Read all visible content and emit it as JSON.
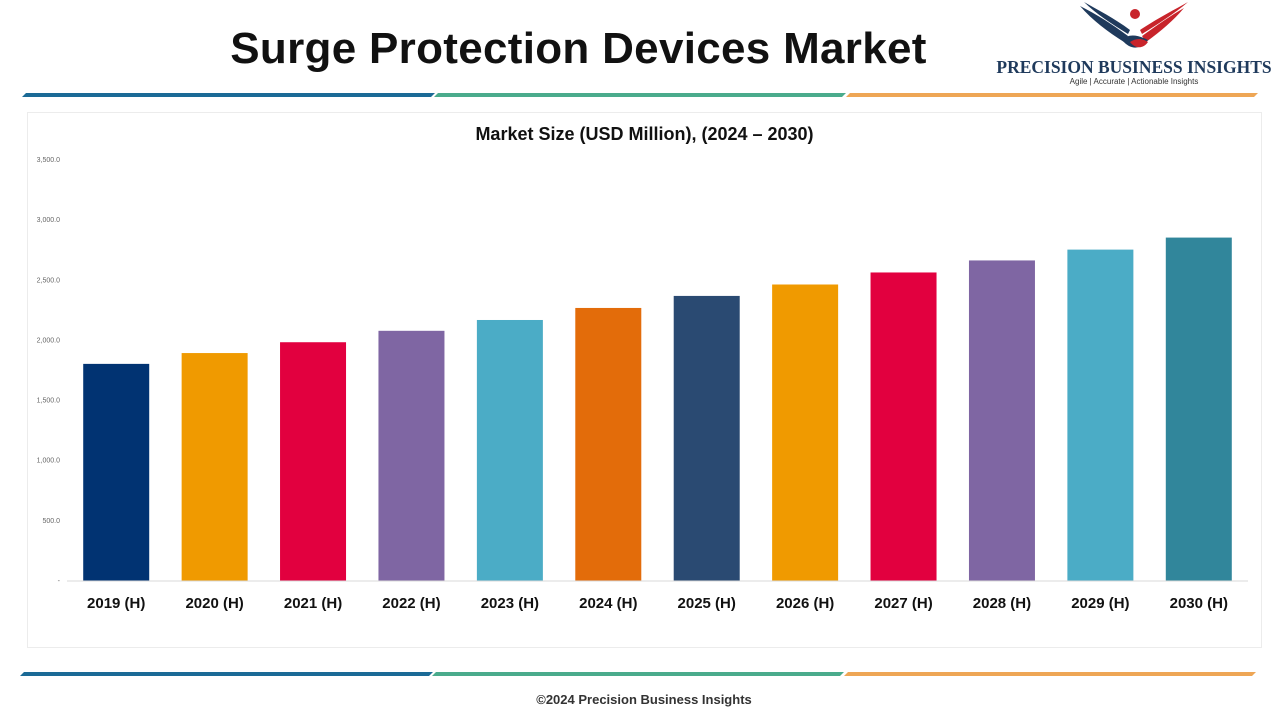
{
  "page": {
    "title": "Surge Protection Devices Market",
    "footer": "©2024 Precision Business Insights"
  },
  "logo": {
    "name": "PRECISION BUSINESS INSIGHTS",
    "tagline": "Agile | Accurate | Actionable Insights"
  },
  "colors": {
    "stripe_blue": "#1b6a96",
    "stripe_green": "#4aab8c",
    "stripe_orange": "#eea655"
  },
  "chart_data": {
    "type": "bar",
    "title": "Market Size (USD Million), (2024 – 2030)",
    "xlabel": "",
    "ylabel": "",
    "ylim": [
      0,
      3500
    ],
    "yticks": [
      {
        "value": 0,
        "label": "-"
      },
      {
        "value": 500,
        "label": "500.0"
      },
      {
        "value": 1000,
        "label": "1,000.0"
      },
      {
        "value": 1500,
        "label": "1,500.0"
      },
      {
        "value": 2000,
        "label": "2,000.0"
      },
      {
        "value": 2500,
        "label": "2,500.0"
      },
      {
        "value": 3000,
        "label": "3,000.0"
      },
      {
        "value": 3500,
        "label": "3,500.0"
      }
    ],
    "grid": false,
    "legend": "none",
    "categories": [
      "2019 (H)",
      "2020 (H)",
      "2021 (H)",
      "2022 (H)",
      "2023 (H)",
      "2024 (H)",
      "2025 (H)",
      "2026 (H)",
      "2027 (H)",
      "2028 (H)",
      "2029 (H)",
      "2030 (H)"
    ],
    "values": [
      1805,
      1895,
      1985,
      2080,
      2170,
      2270,
      2370,
      2465,
      2565,
      2665,
      2755,
      2855
    ],
    "colors": [
      "#013372",
      "#f09a00",
      "#e2003f",
      "#7f66a3",
      "#4bacc6",
      "#e36c0a",
      "#2a4a72",
      "#f09a00",
      "#e2003f",
      "#7f66a3",
      "#4bacc6",
      "#31869b"
    ]
  }
}
